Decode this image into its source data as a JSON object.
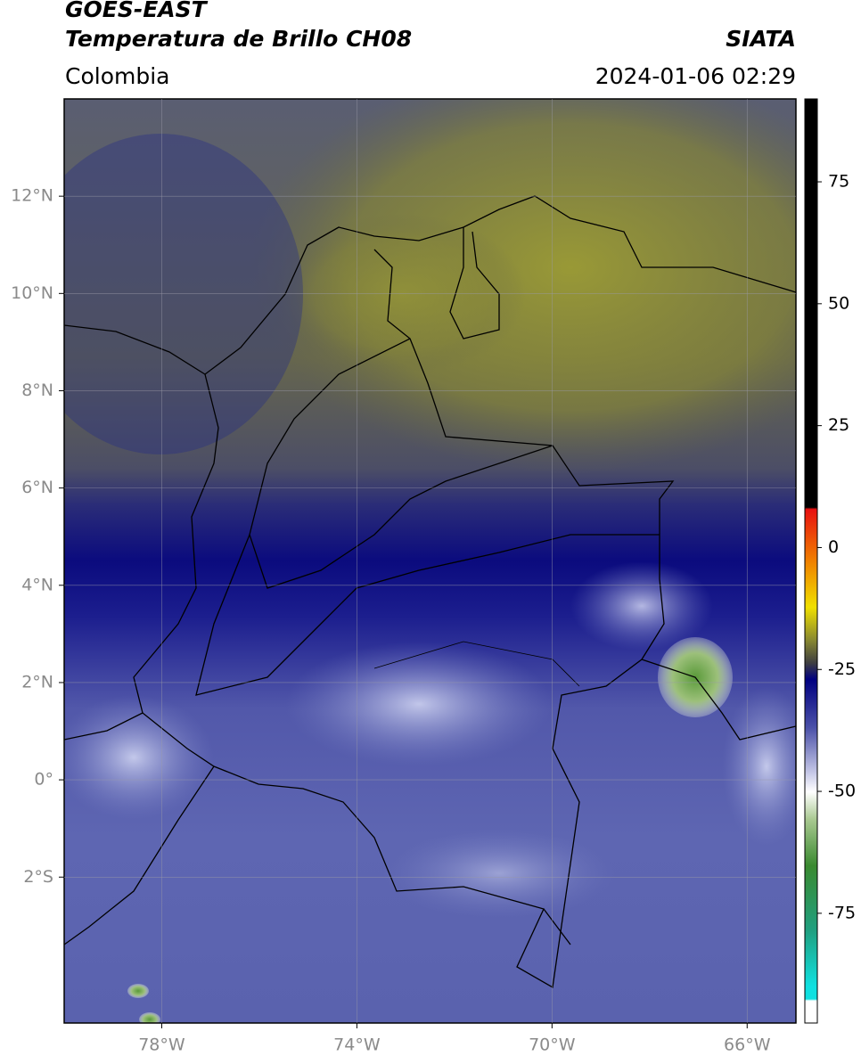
{
  "header": {
    "title": "GOES-EAST",
    "subtitle": "Temperatura de Brillo CH08",
    "source": "SIATA",
    "region": "Colombia",
    "timestamp": "2024-01-06 02:29"
  },
  "map": {
    "lon_range": [
      -80,
      -65
    ],
    "lat_range": [
      -5,
      14
    ],
    "lon_ticks": [
      {
        "value": -78,
        "label": "78°W"
      },
      {
        "value": -74,
        "label": "74°W"
      },
      {
        "value": -70,
        "label": "70°W"
      },
      {
        "value": -66,
        "label": "66°W"
      }
    ],
    "lat_ticks": [
      {
        "value": 12,
        "label": "12°N"
      },
      {
        "value": 10,
        "label": "10°N"
      },
      {
        "value": 8,
        "label": "8°N"
      },
      {
        "value": 6,
        "label": "6°N"
      },
      {
        "value": 4,
        "label": "4°N"
      },
      {
        "value": 2,
        "label": "2°N"
      },
      {
        "value": 0,
        "label": "0°"
      },
      {
        "value": -2,
        "label": "2°S"
      }
    ],
    "grid": true
  },
  "colorbar": {
    "range": [
      -97.5,
      92
    ],
    "ticks": [
      75,
      50,
      25,
      0,
      -25,
      -50,
      -75
    ]
  }
}
